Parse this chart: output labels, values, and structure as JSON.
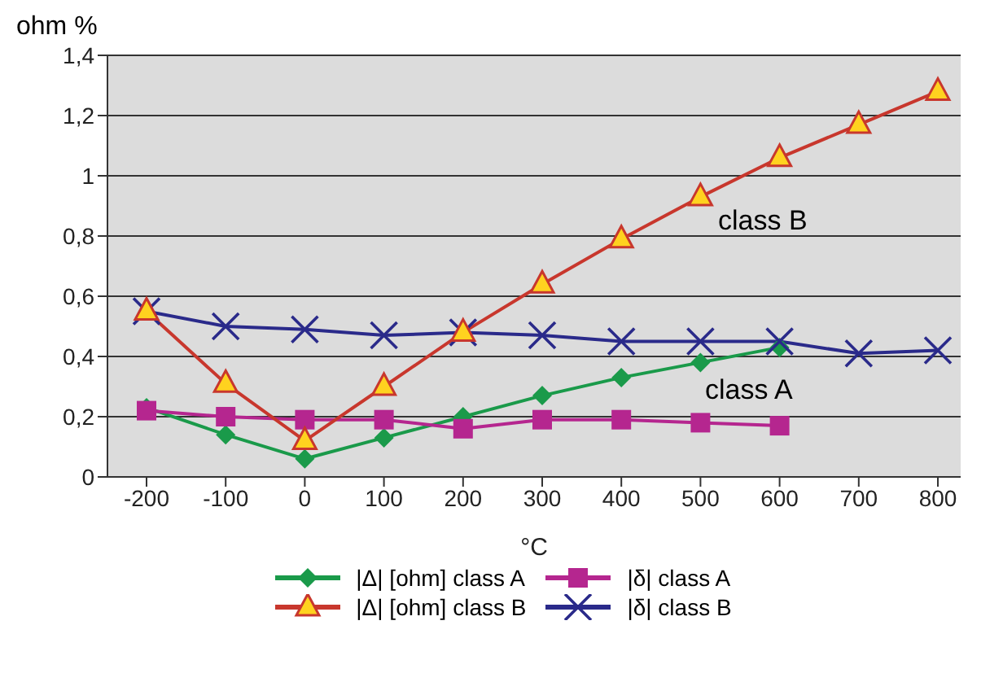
{
  "chart_data": {
    "type": "line",
    "ylabel": "ohm %",
    "xlabel": "°C",
    "categories": [
      "-200",
      "-100",
      "0",
      "100",
      "200",
      "300",
      "400",
      "500",
      "600",
      "700",
      "800"
    ],
    "series": [
      {
        "name": "|Δ| [ohm] class A",
        "color": "#1a9a4a",
        "marker": "diamond",
        "values": [
          0.23,
          0.14,
          0.06,
          0.13,
          0.2,
          0.27,
          0.33,
          0.38,
          0.43,
          null,
          null
        ]
      },
      {
        "name": "|Δ| [ohm] class B",
        "color": "#c8372d",
        "marker": "triangle",
        "values": [
          0.55,
          0.31,
          0.12,
          0.3,
          0.48,
          0.64,
          0.79,
          0.93,
          1.06,
          1.17,
          1.28
        ]
      },
      {
        "name": "|δ| class A",
        "color": "#b5268f",
        "marker": "square",
        "values": [
          0.22,
          0.2,
          0.19,
          0.19,
          0.16,
          0.19,
          0.19,
          0.18,
          0.17,
          null,
          null
        ]
      },
      {
        "name": "|δ| class B",
        "color": "#2a2a8a",
        "marker": "cross",
        "values": [
          0.55,
          0.5,
          0.49,
          0.47,
          0.48,
          0.47,
          0.45,
          0.45,
          0.45,
          0.41,
          0.42
        ]
      }
    ],
    "ylim": [
      0,
      1.4
    ],
    "yticks": [
      0,
      {
        "value": 0.2,
        "label": "0,2"
      },
      {
        "value": 0.4,
        "label": "0,4"
      },
      {
        "value": 0.6,
        "label": "0,6"
      },
      {
        "value": 0.8,
        "label": "0,8"
      },
      1,
      {
        "value": 1.2,
        "label": "1,2"
      },
      {
        "value": 1.4,
        "label": "1,4"
      }
    ],
    "grid": "y",
    "legend": "bottom",
    "line_style": "solid",
    "annotations": [
      "class B",
      "class A"
    ]
  }
}
